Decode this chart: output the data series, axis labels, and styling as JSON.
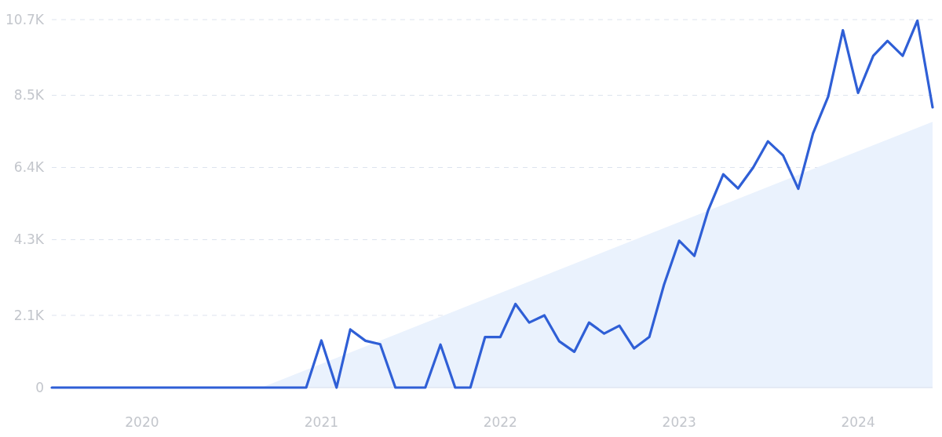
{
  "chart_data": {
    "type": "line",
    "x": [
      "2019-07",
      "2019-08",
      "2019-09",
      "2019-10",
      "2019-11",
      "2019-12",
      "2020-01",
      "2020-02",
      "2020-03",
      "2020-04",
      "2020-05",
      "2020-06",
      "2020-07",
      "2020-08",
      "2020-09",
      "2020-10",
      "2020-11",
      "2020-12",
      "2021-01",
      "2021-02",
      "2021-03",
      "2021-04",
      "2021-05",
      "2021-06",
      "2021-07",
      "2021-08",
      "2021-09",
      "2021-10",
      "2021-11",
      "2021-12",
      "2022-01",
      "2022-02",
      "2022-03",
      "2022-04",
      "2022-05",
      "2022-06",
      "2022-07",
      "2022-08",
      "2022-09",
      "2022-10",
      "2022-11",
      "2022-12",
      "2023-01",
      "2023-02",
      "2023-03",
      "2023-04",
      "2023-05",
      "2023-06",
      "2023-07",
      "2023-08",
      "2023-09",
      "2023-10",
      "2023-11",
      "2023-12",
      "2024-01",
      "2024-02",
      "2024-03",
      "2024-04",
      "2024-05",
      "2024-06"
    ],
    "series": [
      {
        "type": "area",
        "color": "#eaf2fd",
        "x": [
          "2020-09",
          "2024-06"
        ],
        "values": [
          0,
          7730
        ]
      },
      {
        "color": "#2f5fd6",
        "values": [
          0,
          0,
          0,
          0,
          0,
          0,
          0,
          0,
          0,
          0,
          0,
          0,
          0,
          0,
          0,
          0,
          0,
          0,
          1370,
          0,
          1690,
          1360,
          1260,
          0,
          0,
          0,
          1250,
          0,
          0,
          1470,
          1470,
          2430,
          1890,
          2100,
          1350,
          1040,
          1890,
          1570,
          1800,
          1140,
          1470,
          2990,
          4270,
          3830,
          5150,
          6200,
          5790,
          6400,
          7160,
          6750,
          5780,
          7390,
          8460,
          10390,
          8570,
          9650,
          10080,
          9650,
          10670,
          8150
        ]
      }
    ],
    "xlim": [
      "2019-07",
      "2024-06"
    ],
    "xticks": [
      "2020",
      "2021",
      "2022",
      "2023",
      "2024"
    ],
    "ylim": [
      0,
      10700
    ],
    "yticks": [
      0,
      {
        "value": 2100,
        "label": "2.1K"
      },
      {
        "value": 4300,
        "label": "4.3K"
      },
      {
        "value": 6400,
        "label": "6.4K"
      },
      {
        "value": 8500,
        "label": "8.5K"
      },
      {
        "value": 10700,
        "label": "10.7K"
      }
    ],
    "grid": "y",
    "line_style": "solid",
    "marker": "none"
  }
}
